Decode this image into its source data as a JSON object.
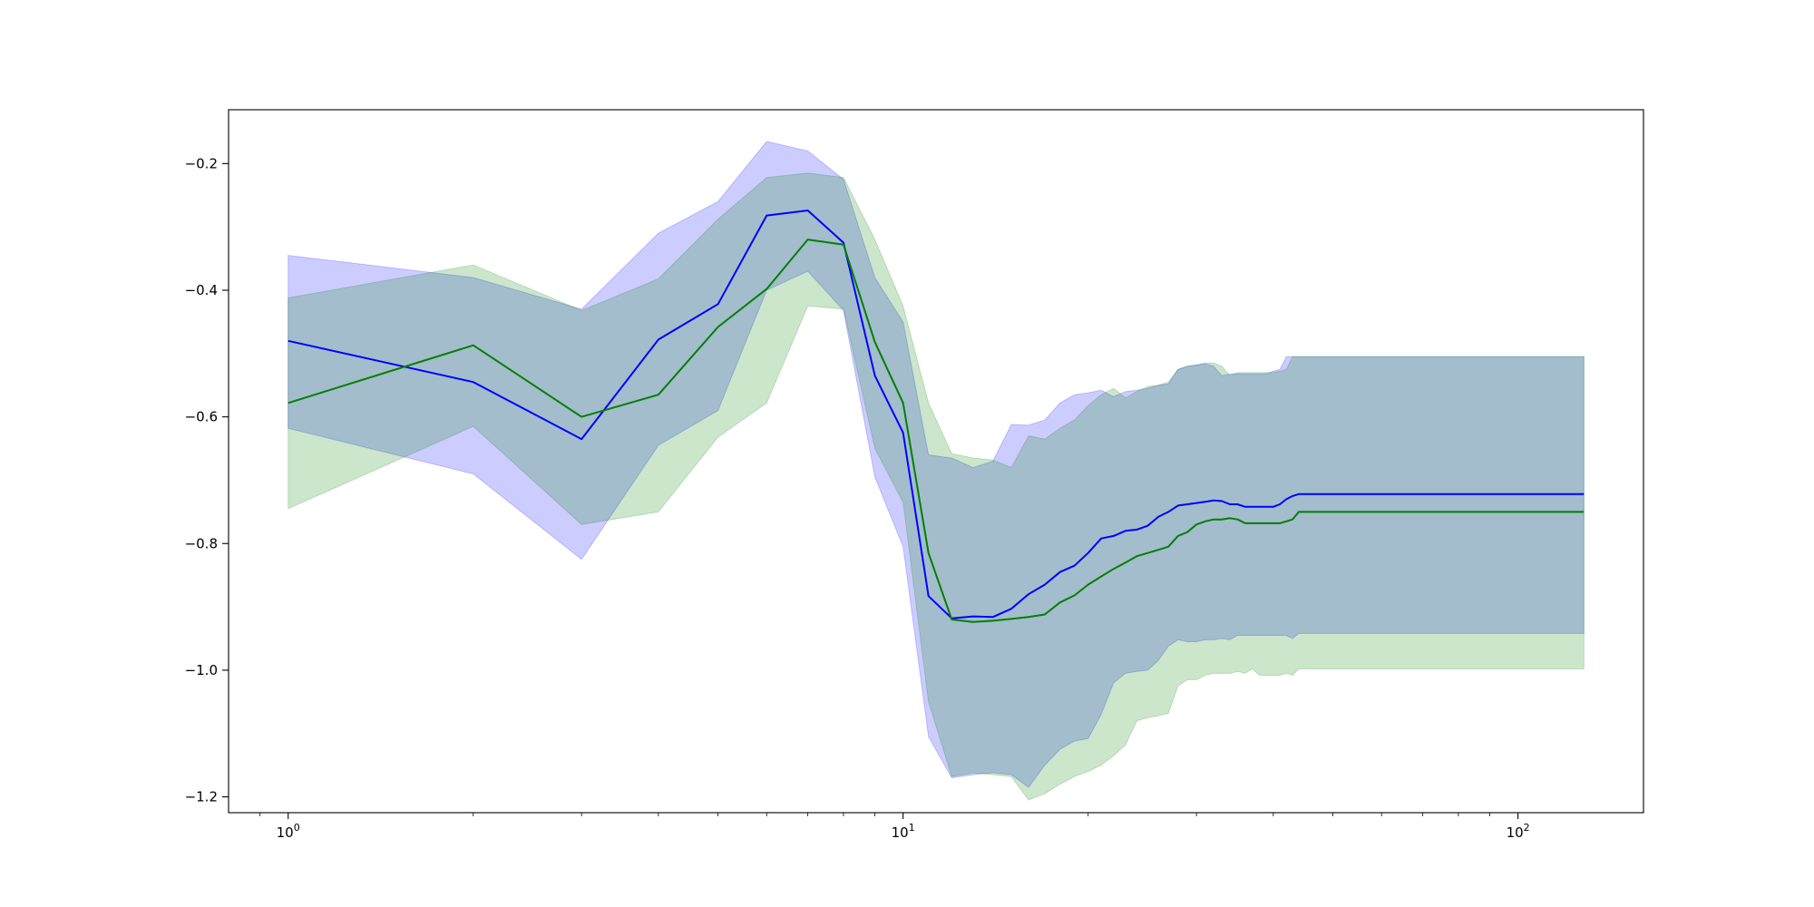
{
  "chart_data": {
    "type": "line",
    "xscale": "log",
    "xlim": [
      0.8,
      160
    ],
    "ylim": [
      -1.225,
      -0.115
    ],
    "grid": false,
    "x_ticks": [
      {
        "value": 1,
        "base": "10",
        "exp": "0"
      },
      {
        "value": 10,
        "base": "10",
        "exp": "1"
      },
      {
        "value": 100,
        "base": "10",
        "exp": "2"
      }
    ],
    "y_ticks": [
      {
        "value": -0.2,
        "label": "−0.2"
      },
      {
        "value": -0.4,
        "label": "−0.4"
      },
      {
        "value": -0.6,
        "label": "−0.6"
      },
      {
        "value": -0.8,
        "label": "−0.8"
      },
      {
        "value": -1.0,
        "label": "−1.0"
      },
      {
        "value": -1.2,
        "label": "−1.2"
      }
    ],
    "x": [
      1,
      2,
      3,
      4,
      5,
      6,
      7,
      8,
      9,
      10,
      11,
      12,
      13,
      14,
      15,
      16,
      17,
      18,
      19,
      20,
      21,
      22,
      23,
      24,
      25,
      26,
      27,
      28,
      29,
      30,
      31,
      32,
      33,
      34,
      35,
      36,
      37,
      38,
      39,
      40,
      41,
      42,
      43,
      44,
      128
    ],
    "series": [
      {
        "color": "#0000ff",
        "band_color": "#0000ff",
        "mean": [
          -0.48,
          -0.545,
          -0.635,
          -0.478,
          -0.422,
          -0.282,
          -0.274,
          -0.325,
          -0.535,
          -0.625,
          -0.883,
          -0.918,
          -0.915,
          -0.916,
          -0.903,
          -0.88,
          -0.865,
          -0.845,
          -0.835,
          -0.815,
          -0.792,
          -0.788,
          -0.78,
          -0.778,
          -0.772,
          -0.758,
          -0.75,
          -0.74,
          -0.738,
          -0.736,
          -0.734,
          -0.732,
          -0.733,
          -0.738,
          -0.738,
          -0.742,
          -0.742,
          -0.742,
          -0.742,
          -0.742,
          -0.738,
          -0.73,
          -0.725,
          -0.722,
          -0.722
        ],
        "upper": [
          -0.345,
          -0.38,
          -0.43,
          -0.31,
          -0.26,
          -0.165,
          -0.18,
          -0.225,
          -0.38,
          -0.45,
          -0.66,
          -0.665,
          -0.68,
          -0.67,
          -0.612,
          -0.613,
          -0.605,
          -0.578,
          -0.565,
          -0.562,
          -0.558,
          -0.568,
          -0.56,
          -0.558,
          -0.555,
          -0.55,
          -0.548,
          -0.525,
          -0.52,
          -0.518,
          -0.516,
          -0.52,
          -0.535,
          -0.532,
          -0.532,
          -0.532,
          -0.532,
          -0.532,
          -0.532,
          -0.528,
          -0.525,
          -0.505,
          -0.505,
          -0.505,
          -0.505
        ],
        "lower": [
          -0.618,
          -0.69,
          -0.825,
          -0.645,
          -0.59,
          -0.4,
          -0.37,
          -0.432,
          -0.695,
          -0.805,
          -1.105,
          -1.17,
          -1.165,
          -1.162,
          -1.165,
          -1.185,
          -1.15,
          -1.125,
          -1.112,
          -1.108,
          -1.07,
          -1.02,
          -1.005,
          -1.002,
          -1.0,
          -0.985,
          -0.962,
          -0.952,
          -0.955,
          -0.955,
          -0.952,
          -0.952,
          -0.95,
          -0.952,
          -0.945,
          -0.945,
          -0.945,
          -0.945,
          -0.945,
          -0.945,
          -0.945,
          -0.945,
          -0.95,
          -0.942,
          -0.942
        ]
      },
      {
        "color": "#008000",
        "band_color": "#008000",
        "mean": [
          -0.578,
          -0.487,
          -0.6,
          -0.565,
          -0.458,
          -0.398,
          -0.32,
          -0.328,
          -0.482,
          -0.578,
          -0.815,
          -0.92,
          -0.924,
          -0.922,
          -0.919,
          -0.916,
          -0.912,
          -0.893,
          -0.882,
          -0.865,
          -0.852,
          -0.84,
          -0.83,
          -0.82,
          -0.815,
          -0.81,
          -0.805,
          -0.788,
          -0.782,
          -0.77,
          -0.765,
          -0.762,
          -0.762,
          -0.76,
          -0.762,
          -0.768,
          -0.768,
          -0.768,
          -0.768,
          -0.768,
          -0.768,
          -0.765,
          -0.762,
          -0.75,
          -0.75
        ],
        "upper": [
          -0.412,
          -0.36,
          -0.432,
          -0.382,
          -0.288,
          -0.222,
          -0.215,
          -0.222,
          -0.32,
          -0.425,
          -0.578,
          -0.658,
          -0.665,
          -0.668,
          -0.68,
          -0.63,
          -0.635,
          -0.618,
          -0.605,
          -0.582,
          -0.565,
          -0.555,
          -0.57,
          -0.56,
          -0.552,
          -0.55,
          -0.545,
          -0.525,
          -0.52,
          -0.518,
          -0.515,
          -0.515,
          -0.52,
          -0.535,
          -0.53,
          -0.53,
          -0.53,
          -0.53,
          -0.53,
          -0.53,
          -0.528,
          -0.525,
          -0.505,
          -0.505,
          -0.505
        ],
        "lower": [
          -0.745,
          -0.615,
          -0.77,
          -0.75,
          -0.632,
          -0.578,
          -0.425,
          -0.43,
          -0.65,
          -0.735,
          -1.05,
          -1.168,
          -1.162,
          -1.165,
          -1.168,
          -1.205,
          -1.195,
          -1.18,
          -1.168,
          -1.16,
          -1.15,
          -1.135,
          -1.118,
          -1.08,
          -1.075,
          -1.072,
          -1.068,
          -1.025,
          -1.015,
          -1.015,
          -1.008,
          -1.005,
          -1.005,
          -1.005,
          -1.002,
          -1.005,
          -0.998,
          -1.008,
          -1.008,
          -1.008,
          -1.008,
          -1.005,
          -1.008,
          -0.998,
          -0.998
        ]
      }
    ]
  }
}
